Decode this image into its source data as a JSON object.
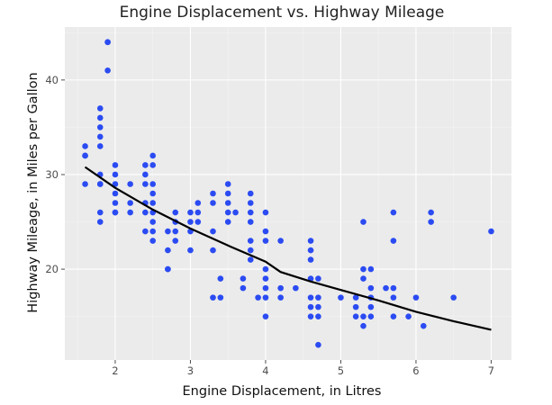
{
  "chart_data": {
    "type": "scatter",
    "title": "Engine Displacement vs. Highway Mileage",
    "xlabel": "Engine Displacement, in Litres",
    "ylabel": "Highway Mileage, in Miles per Gallon",
    "xlim": [
      1.33,
      7.27
    ],
    "ylim": [
      10.4,
      45.6
    ],
    "xticks": [
      2,
      3,
      4,
      5,
      6,
      7
    ],
    "yticks": [
      20,
      30,
      40
    ],
    "xticklabels": [
      "2",
      "3",
      "4",
      "5",
      "6",
      "7"
    ],
    "yticklabels": [
      "20",
      "30",
      "40"
    ],
    "grid": true,
    "legend": "none",
    "colors": {
      "panel": "#ebebeb",
      "points": "#2b4bf2",
      "fit_line": "#000000"
    },
    "points": [
      {
        "x": 1.6,
        "y": 33
      },
      {
        "x": 1.6,
        "y": 32
      },
      {
        "x": 1.6,
        "y": 32
      },
      {
        "x": 1.6,
        "y": 29
      },
      {
        "x": 1.8,
        "y": 37
      },
      {
        "x": 1.8,
        "y": 36
      },
      {
        "x": 1.8,
        "y": 35
      },
      {
        "x": 1.8,
        "y": 34
      },
      {
        "x": 1.8,
        "y": 33
      },
      {
        "x": 1.8,
        "y": 30
      },
      {
        "x": 1.8,
        "y": 29
      },
      {
        "x": 1.8,
        "y": 29
      },
      {
        "x": 1.8,
        "y": 26
      },
      {
        "x": 1.8,
        "y": 25
      },
      {
        "x": 1.9,
        "y": 44
      },
      {
        "x": 1.9,
        "y": 44
      },
      {
        "x": 1.9,
        "y": 41
      },
      {
        "x": 2.0,
        "y": 31
      },
      {
        "x": 2.0,
        "y": 30
      },
      {
        "x": 2.0,
        "y": 29
      },
      {
        "x": 2.0,
        "y": 28
      },
      {
        "x": 2.0,
        "y": 27
      },
      {
        "x": 2.0,
        "y": 26
      },
      {
        "x": 2.0,
        "y": 26
      },
      {
        "x": 2.2,
        "y": 29
      },
      {
        "x": 2.2,
        "y": 27
      },
      {
        "x": 2.2,
        "y": 26
      },
      {
        "x": 2.4,
        "y": 31
      },
      {
        "x": 2.4,
        "y": 30
      },
      {
        "x": 2.4,
        "y": 29
      },
      {
        "x": 2.4,
        "y": 27
      },
      {
        "x": 2.4,
        "y": 26
      },
      {
        "x": 2.4,
        "y": 24
      },
      {
        "x": 2.5,
        "y": 32
      },
      {
        "x": 2.5,
        "y": 31
      },
      {
        "x": 2.5,
        "y": 29
      },
      {
        "x": 2.5,
        "y": 28
      },
      {
        "x": 2.5,
        "y": 27
      },
      {
        "x": 2.5,
        "y": 26
      },
      {
        "x": 2.5,
        "y": 25
      },
      {
        "x": 2.5,
        "y": 24
      },
      {
        "x": 2.5,
        "y": 23
      },
      {
        "x": 2.7,
        "y": 24
      },
      {
        "x": 2.7,
        "y": 22
      },
      {
        "x": 2.7,
        "y": 20
      },
      {
        "x": 2.7,
        "y": 20
      },
      {
        "x": 2.8,
        "y": 26
      },
      {
        "x": 2.8,
        "y": 25
      },
      {
        "x": 2.8,
        "y": 24
      },
      {
        "x": 2.8,
        "y": 23
      },
      {
        "x": 3.0,
        "y": 26
      },
      {
        "x": 3.0,
        "y": 25
      },
      {
        "x": 3.0,
        "y": 24
      },
      {
        "x": 3.0,
        "y": 22
      },
      {
        "x": 3.1,
        "y": 27
      },
      {
        "x": 3.1,
        "y": 26
      },
      {
        "x": 3.1,
        "y": 25
      },
      {
        "x": 3.3,
        "y": 28
      },
      {
        "x": 3.3,
        "y": 27
      },
      {
        "x": 3.3,
        "y": 24
      },
      {
        "x": 3.3,
        "y": 22
      },
      {
        "x": 3.3,
        "y": 17
      },
      {
        "x": 3.4,
        "y": 19
      },
      {
        "x": 3.4,
        "y": 17
      },
      {
        "x": 3.5,
        "y": 29
      },
      {
        "x": 3.5,
        "y": 28
      },
      {
        "x": 3.5,
        "y": 27
      },
      {
        "x": 3.5,
        "y": 26
      },
      {
        "x": 3.5,
        "y": 25
      },
      {
        "x": 3.6,
        "y": 26
      },
      {
        "x": 3.7,
        "y": 19
      },
      {
        "x": 3.7,
        "y": 18
      },
      {
        "x": 3.8,
        "y": 28
      },
      {
        "x": 3.8,
        "y": 27
      },
      {
        "x": 3.8,
        "y": 26
      },
      {
        "x": 3.8,
        "y": 25
      },
      {
        "x": 3.8,
        "y": 23
      },
      {
        "x": 3.8,
        "y": 22
      },
      {
        "x": 3.8,
        "y": 21
      },
      {
        "x": 3.9,
        "y": 17
      },
      {
        "x": 4.0,
        "y": 26
      },
      {
        "x": 4.0,
        "y": 24
      },
      {
        "x": 4.0,
        "y": 23
      },
      {
        "x": 4.0,
        "y": 20
      },
      {
        "x": 4.0,
        "y": 19
      },
      {
        "x": 4.0,
        "y": 18
      },
      {
        "x": 4.0,
        "y": 17
      },
      {
        "x": 4.0,
        "y": 15
      },
      {
        "x": 4.2,
        "y": 23
      },
      {
        "x": 4.2,
        "y": 18
      },
      {
        "x": 4.2,
        "y": 17
      },
      {
        "x": 4.4,
        "y": 18
      },
      {
        "x": 4.6,
        "y": 23
      },
      {
        "x": 4.6,
        "y": 22
      },
      {
        "x": 4.6,
        "y": 21
      },
      {
        "x": 4.6,
        "y": 19
      },
      {
        "x": 4.6,
        "y": 17
      },
      {
        "x": 4.6,
        "y": 16
      },
      {
        "x": 4.6,
        "y": 15
      },
      {
        "x": 4.7,
        "y": 19
      },
      {
        "x": 4.7,
        "y": 17
      },
      {
        "x": 4.7,
        "y": 16
      },
      {
        "x": 4.7,
        "y": 15
      },
      {
        "x": 4.7,
        "y": 12
      },
      {
        "x": 5.0,
        "y": 17
      },
      {
        "x": 5.2,
        "y": 17
      },
      {
        "x": 5.2,
        "y": 16
      },
      {
        "x": 5.2,
        "y": 15
      },
      {
        "x": 5.3,
        "y": 25
      },
      {
        "x": 5.3,
        "y": 20
      },
      {
        "x": 5.3,
        "y": 19
      },
      {
        "x": 5.3,
        "y": 15
      },
      {
        "x": 5.3,
        "y": 14
      },
      {
        "x": 5.4,
        "y": 20
      },
      {
        "x": 5.4,
        "y": 18
      },
      {
        "x": 5.4,
        "y": 17
      },
      {
        "x": 5.4,
        "y": 16
      },
      {
        "x": 5.4,
        "y": 15
      },
      {
        "x": 5.6,
        "y": 18
      },
      {
        "x": 5.7,
        "y": 26
      },
      {
        "x": 5.7,
        "y": 23
      },
      {
        "x": 5.7,
        "y": 18
      },
      {
        "x": 5.7,
        "y": 17
      },
      {
        "x": 5.7,
        "y": 15
      },
      {
        "x": 5.9,
        "y": 15
      },
      {
        "x": 6.0,
        "y": 17
      },
      {
        "x": 6.1,
        "y": 14
      },
      {
        "x": 6.2,
        "y": 26
      },
      {
        "x": 6.2,
        "y": 25
      },
      {
        "x": 6.5,
        "y": 17
      },
      {
        "x": 7.0,
        "y": 24
      }
    ],
    "fit_line": [
      {
        "x": 1.6,
        "y": 30.8
      },
      {
        "x": 2.0,
        "y": 28.6
      },
      {
        "x": 2.5,
        "y": 26.3
      },
      {
        "x": 3.0,
        "y": 24.3
      },
      {
        "x": 3.5,
        "y": 22.5
      },
      {
        "x": 4.0,
        "y": 20.8
      },
      {
        "x": 4.2,
        "y": 19.7
      },
      {
        "x": 4.6,
        "y": 18.7
      },
      {
        "x": 5.0,
        "y": 17.8
      },
      {
        "x": 5.5,
        "y": 16.7
      },
      {
        "x": 6.0,
        "y": 15.5
      },
      {
        "x": 6.5,
        "y": 14.5
      },
      {
        "x": 7.0,
        "y": 13.6
      }
    ]
  }
}
